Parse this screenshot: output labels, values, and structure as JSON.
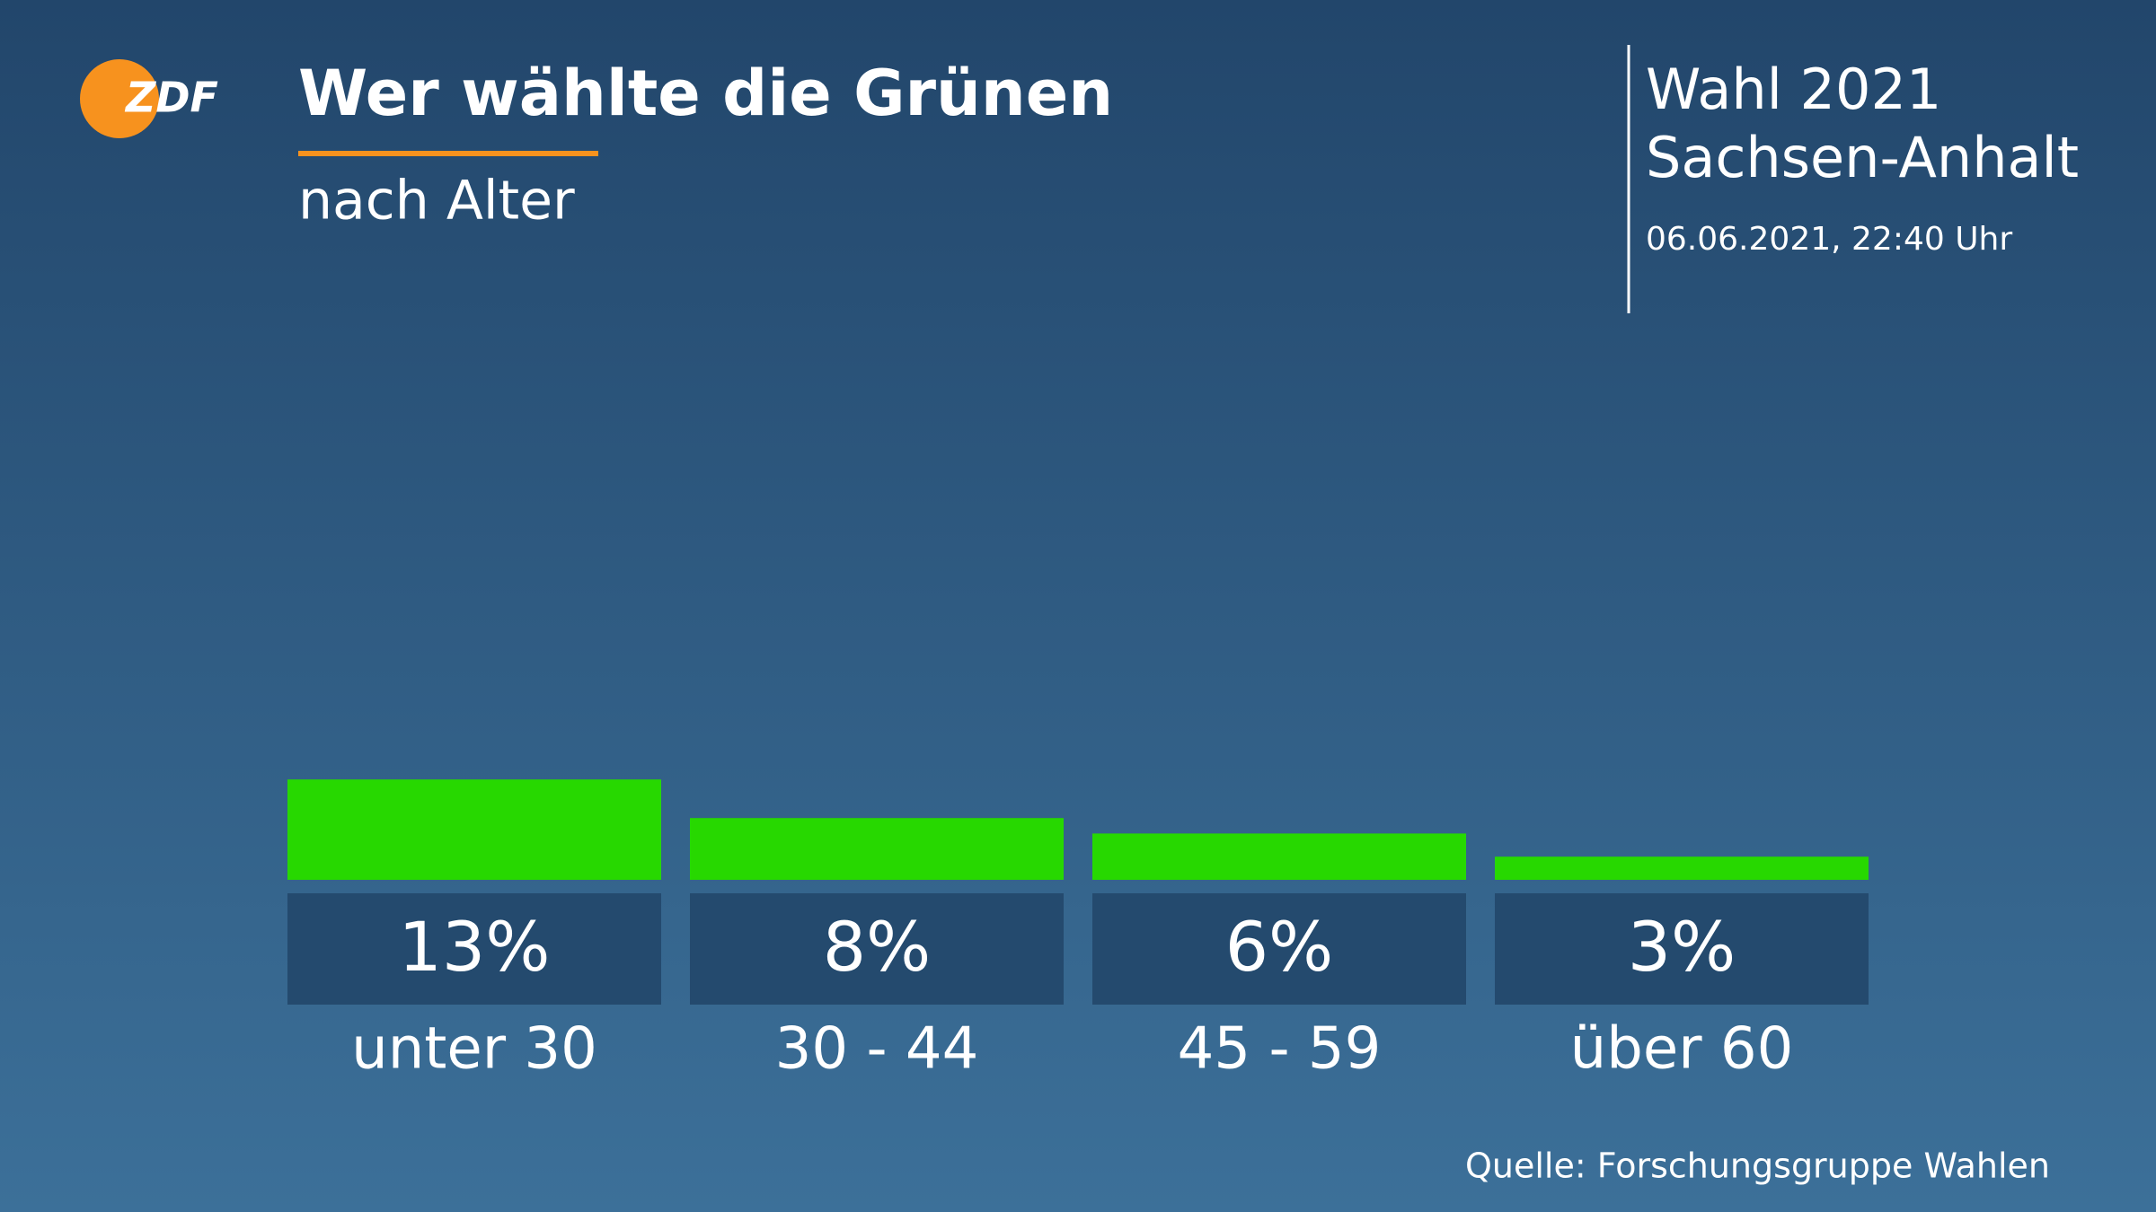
{
  "chart_data": {
    "type": "bar",
    "title": "Wer wählte die Grünen",
    "subtitle": "nach Alter",
    "categories": [
      "unter 30",
      "30 - 44",
      "45 - 59",
      "über 60"
    ],
    "values": [
      13,
      8,
      6,
      3
    ],
    "value_labels": [
      "13%",
      "8%",
      "6%",
      "3%"
    ],
    "color": "#27d800"
  },
  "header": {
    "logo": "ZDF",
    "election": "Wahl 2021",
    "region": "Sachsen-Anhalt",
    "timestamp": "06.06.2021, 22:40 Uhr"
  },
  "source": "Quelle: Forschungsgruppe Wahlen"
}
